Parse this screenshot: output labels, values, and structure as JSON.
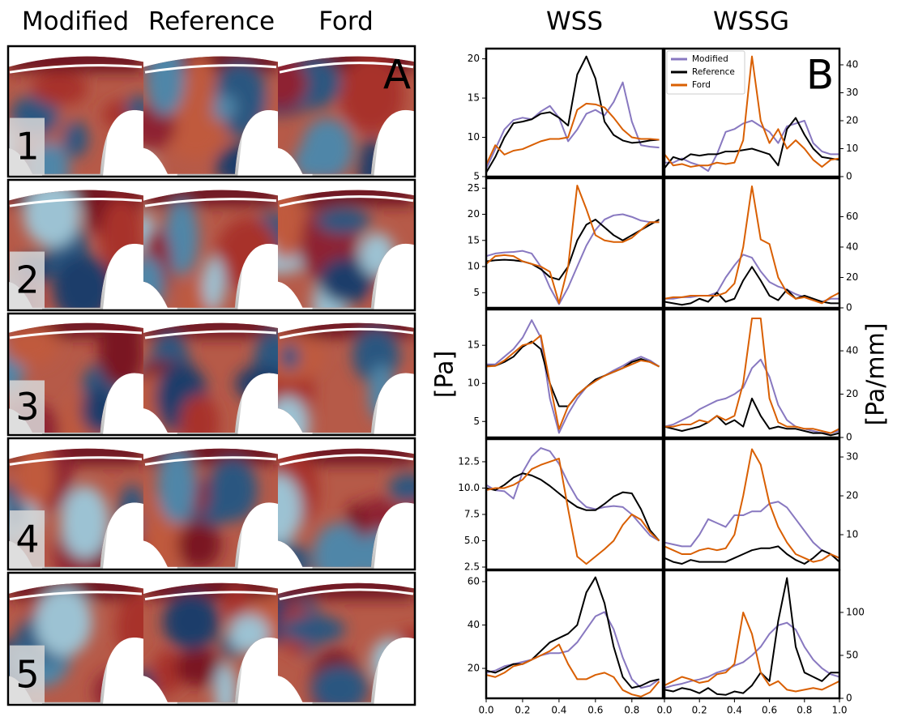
{
  "panel_a": {
    "label": "A",
    "columns": [
      "Modified",
      "Reference",
      "Ford"
    ],
    "rows": [
      "1",
      "2",
      "3",
      "4",
      "5"
    ]
  },
  "panel_b": {
    "label": "B",
    "columns": [
      "WSS",
      "WSSG"
    ],
    "y_labels": [
      "[Pa]",
      "[Pa/mm]"
    ]
  },
  "chart_data": [
    {
      "type": "line",
      "yaxis": "left",
      "xlim": [
        0,
        0.97
      ],
      "ylim": [
        5,
        21.3
      ],
      "yticks": [
        5,
        10,
        15,
        20
      ],
      "x": [
        0,
        0.05,
        0.1,
        0.15,
        0.2,
        0.25,
        0.3,
        0.35,
        0.4,
        0.45,
        0.5,
        0.55,
        0.6,
        0.65,
        0.7,
        0.75,
        0.8,
        0.85,
        0.9,
        0.95
      ],
      "series": [
        {
          "color": "#8878c0",
          "values": [
            6,
            8.5,
            11,
            12.2,
            12.5,
            12.3,
            13.3,
            14,
            12.5,
            9.5,
            11,
            13,
            13.5,
            12.8,
            14.5,
            17,
            12,
            9,
            8.8,
            8.7
          ]
        },
        {
          "color": "#000000",
          "values": [
            5.5,
            7.5,
            10,
            11.8,
            12,
            12.3,
            13,
            13.2,
            12.5,
            11.5,
            18,
            20.3,
            17.5,
            12,
            10.3,
            9.6,
            9.3,
            9.4,
            9.6,
            9.7
          ]
        },
        {
          "color": "#d95f02",
          "values": [
            6.5,
            9,
            7.8,
            8.3,
            8.5,
            9,
            9.5,
            9.8,
            9.8,
            10,
            13.5,
            14.3,
            14.2,
            13.8,
            12.5,
            11,
            10,
            9.8,
            9.8,
            9.7
          ]
        }
      ]
    },
    {
      "type": "line",
      "yaxis": "right",
      "xlim": [
        0,
        1
      ],
      "ylim": [
        0,
        45.8
      ],
      "yticks": [
        0,
        10,
        20,
        30,
        40
      ],
      "legend": "upper left",
      "x": [
        0,
        0.05,
        0.1,
        0.15,
        0.2,
        0.25,
        0.3,
        0.35,
        0.4,
        0.45,
        0.5,
        0.55,
        0.6,
        0.65,
        0.7,
        0.75,
        0.8,
        0.85,
        0.9,
        0.95,
        1
      ],
      "series": [
        {
          "name": "Modified",
          "color": "#8878c0",
          "values": [
            5,
            5,
            6.5,
            5,
            4,
            2,
            8,
            16,
            17,
            19,
            20,
            18,
            16,
            12,
            18,
            19,
            20,
            12,
            9,
            8,
            8
          ]
        },
        {
          "name": "Reference",
          "color": "#000000",
          "values": [
            3,
            7,
            6,
            8,
            7.5,
            8,
            8,
            9,
            9,
            9.5,
            10,
            9,
            8,
            4,
            17,
            21,
            15,
            10,
            7,
            6.5,
            6
          ]
        },
        {
          "name": "Ford",
          "color": "#d95f02",
          "values": [
            8,
            4,
            4.5,
            3.5,
            4,
            4,
            5,
            4.5,
            5,
            13,
            43,
            20,
            12,
            17,
            10,
            13,
            10,
            6,
            3.5,
            6,
            6.5
          ]
        }
      ]
    },
    {
      "type": "line",
      "yaxis": "left",
      "xlim": [
        0,
        0.97
      ],
      "ylim": [
        2.1,
        26.9
      ],
      "yticks": [
        5,
        10,
        15,
        20,
        25
      ],
      "x": [
        0,
        0.05,
        0.1,
        0.15,
        0.2,
        0.25,
        0.3,
        0.35,
        0.4,
        0.45,
        0.5,
        0.55,
        0.6,
        0.65,
        0.7,
        0.75,
        0.8,
        0.85,
        0.9,
        0.95
      ],
      "series": [
        {
          "color": "#8878c0",
          "values": [
            12,
            12.5,
            12.7,
            12.8,
            13,
            12.5,
            10,
            6,
            2.8,
            6,
            10,
            14,
            17,
            19,
            19.8,
            20,
            19.5,
            18.8,
            18.5,
            18.5
          ]
        },
        {
          "color": "#000000",
          "values": [
            11,
            11.2,
            11.3,
            11.2,
            11,
            10.5,
            9.5,
            8,
            7.5,
            10,
            15,
            18,
            19,
            17.5,
            16,
            15,
            16,
            17,
            18,
            19
          ]
        },
        {
          "color": "#d95f02",
          "values": [
            10.5,
            12,
            12.2,
            12,
            11,
            10.5,
            10,
            9,
            3,
            10,
            25.5,
            21,
            16,
            15,
            14.7,
            14.7,
            15.5,
            17,
            18.5,
            18.5
          ]
        }
      ]
    },
    {
      "type": "line",
      "yaxis": "right",
      "xlim": [
        0,
        1
      ],
      "ylim": [
        0,
        85.3
      ],
      "yticks": [
        0,
        20,
        40,
        60
      ],
      "x": [
        0,
        0.05,
        0.1,
        0.15,
        0.2,
        0.25,
        0.3,
        0.35,
        0.4,
        0.45,
        0.5,
        0.55,
        0.6,
        0.65,
        0.7,
        0.75,
        0.8,
        0.85,
        0.9,
        0.95,
        1
      ],
      "series": [
        {
          "color": "#8878c0",
          "values": [
            6,
            6,
            7,
            7,
            8,
            8,
            10,
            20,
            28,
            35,
            33,
            24,
            17,
            14,
            12,
            9,
            7,
            5,
            4,
            6,
            6
          ]
        },
        {
          "color": "#000000",
          "values": [
            4,
            3,
            2,
            3,
            6,
            4,
            10,
            4,
            6,
            18,
            27,
            18,
            8,
            5,
            12,
            6,
            8,
            6,
            4,
            3,
            3
          ]
        },
        {
          "color": "#d95f02",
          "values": [
            6,
            7,
            7,
            8,
            8,
            8,
            8,
            10,
            16,
            40,
            80,
            45,
            42,
            20,
            10,
            6,
            7,
            5,
            3,
            7,
            10
          ]
        }
      ]
    },
    {
      "type": "line",
      "yaxis": "left",
      "xlim": [
        0,
        0.97
      ],
      "ylim": [
        2.9,
        19.7
      ],
      "yticks": [
        5,
        10,
        15
      ],
      "x": [
        0,
        0.05,
        0.1,
        0.15,
        0.2,
        0.25,
        0.3,
        0.35,
        0.4,
        0.45,
        0.5,
        0.55,
        0.6,
        0.65,
        0.7,
        0.75,
        0.8,
        0.85,
        0.9,
        0.95
      ],
      "series": [
        {
          "color": "#8878c0",
          "values": [
            12.5,
            12.5,
            13.5,
            14.5,
            16,
            18.3,
            16,
            8,
            3.5,
            6,
            8,
            9.5,
            10.5,
            11,
            11.7,
            12.3,
            13,
            13.5,
            13,
            12.2
          ]
        },
        {
          "color": "#000000",
          "values": [
            12.3,
            12.3,
            12.8,
            13.5,
            14.8,
            15.5,
            14.5,
            10,
            7,
            7,
            8.5,
            9.5,
            10.5,
            11,
            11.5,
            12,
            12.8,
            13.2,
            12.8,
            12.2
          ]
        },
        {
          "color": "#d95f02",
          "values": [
            12.2,
            12.3,
            13,
            14,
            15,
            15.3,
            16.3,
            10,
            4,
            7,
            8.5,
            9.5,
            10.3,
            11,
            11.5,
            12,
            12.5,
            13,
            12.8,
            12.2
          ]
        }
      ]
    },
    {
      "type": "line",
      "yaxis": "right",
      "xlim": [
        0,
        1
      ],
      "ylim": [
        0,
        59.1
      ],
      "yticks": [
        0,
        20,
        40
      ],
      "x": [
        0,
        0.05,
        0.1,
        0.15,
        0.2,
        0.25,
        0.3,
        0.35,
        0.4,
        0.45,
        0.5,
        0.55,
        0.6,
        0.65,
        0.7,
        0.75,
        0.8,
        0.85,
        0.9,
        0.95,
        1
      ],
      "series": [
        {
          "color": "#8878c0",
          "values": [
            5,
            6,
            8,
            10,
            13,
            15,
            17,
            18,
            20,
            23,
            32,
            36,
            28,
            15,
            8,
            5,
            4,
            3,
            2,
            2,
            3
          ]
        },
        {
          "color": "#000000",
          "values": [
            5,
            4,
            3,
            4,
            5,
            7,
            10,
            6,
            8,
            5,
            18,
            10,
            4,
            5,
            4,
            4,
            3,
            2,
            2,
            1,
            2
          ]
        },
        {
          "color": "#d95f02",
          "values": [
            5,
            5,
            6,
            6,
            8,
            7,
            10,
            8,
            10,
            25,
            55,
            55,
            18,
            7,
            5,
            5,
            4,
            4,
            3,
            2,
            4
          ]
        }
      ]
    },
    {
      "type": "line",
      "yaxis": "left",
      "xlim": [
        0,
        0.97
      ],
      "ylim": [
        2.27,
        14.65
      ],
      "yticks": [
        2.5,
        {
          "value": 5,
          "label": "5.0"
        },
        7.5,
        {
          "value": 10,
          "label": "10.0"
        },
        12.5
      ],
      "x": [
        0,
        0.05,
        0.1,
        0.15,
        0.2,
        0.25,
        0.3,
        0.35,
        0.4,
        0.45,
        0.5,
        0.55,
        0.6,
        0.65,
        0.7,
        0.75,
        0.8,
        0.85,
        0.9,
        0.95
      ],
      "series": [
        {
          "color": "#8878c0",
          "values": [
            10.3,
            9.8,
            9.7,
            9,
            11.5,
            13,
            13.8,
            13.5,
            12.3,
            10.5,
            9,
            8.2,
            8,
            8.2,
            8.3,
            8.2,
            7.5,
            6.5,
            5.5,
            5
          ]
        },
        {
          "color": "#000000",
          "values": [
            10,
            9.8,
            10.3,
            11,
            11.4,
            11.2,
            10.8,
            10.2,
            9.5,
            8.8,
            8.2,
            7.9,
            7.9,
            8.5,
            9.2,
            9.6,
            9.5,
            8,
            6,
            5
          ]
        },
        {
          "color": "#d95f02",
          "values": [
            9.8,
            10,
            10,
            10.3,
            10.8,
            11.8,
            12.2,
            12.5,
            12.8,
            8,
            3.5,
            2.8,
            3.5,
            4.2,
            5,
            6.5,
            7.5,
            7,
            5.8,
            5
          ]
        }
      ]
    },
    {
      "type": "line",
      "yaxis": "right",
      "xlim": [
        0,
        1
      ],
      "ylim": [
        1.04,
        34.6
      ],
      "yticks": [
        10,
        20,
        30
      ],
      "x": [
        0,
        0.05,
        0.1,
        0.15,
        0.2,
        0.25,
        0.3,
        0.35,
        0.4,
        0.45,
        0.5,
        0.55,
        0.6,
        0.65,
        0.7,
        0.75,
        0.8,
        0.85,
        0.9,
        0.95,
        1
      ],
      "series": [
        {
          "color": "#8878c0",
          "values": [
            8,
            7.5,
            7,
            7,
            10,
            14,
            13,
            12,
            15,
            15,
            16,
            16,
            18,
            18.5,
            17,
            14,
            11,
            8,
            6,
            5,
            4
          ]
        },
        {
          "color": "#000000",
          "values": [
            4,
            3,
            2.5,
            3.5,
            3,
            3,
            3,
            3,
            4,
            5,
            6,
            6.5,
            6.5,
            7,
            5,
            3.5,
            2.5,
            4,
            6,
            5,
            3
          ]
        },
        {
          "color": "#d95f02",
          "values": [
            7,
            6,
            5,
            5,
            6,
            6.5,
            6,
            6.5,
            10,
            20,
            32,
            28,
            18,
            12,
            8,
            5,
            4,
            3,
            3.5,
            5,
            4
          ]
        }
      ]
    },
    {
      "type": "line",
      "yaxis": "left",
      "xlim": [
        0,
        0.97
      ],
      "ylim": [
        6.2,
        65.2
      ],
      "yticks": [
        20,
        40,
        60
      ],
      "xticks": [
        {
          "value": 0,
          "label": "0.0"
        },
        0.2,
        0.4,
        0.6,
        0.8
      ],
      "x": [
        0,
        0.05,
        0.1,
        0.15,
        0.2,
        0.25,
        0.3,
        0.35,
        0.4,
        0.45,
        0.5,
        0.55,
        0.6,
        0.65,
        0.7,
        0.75,
        0.8,
        0.85,
        0.9,
        0.95
      ],
      "series": [
        {
          "color": "#8878c0",
          "values": [
            18,
            19,
            21,
            22,
            23,
            24,
            26,
            27,
            27,
            28,
            32,
            38,
            44,
            46,
            38,
            25,
            15,
            11,
            12,
            15
          ]
        },
        {
          "color": "#000000",
          "values": [
            19,
            18,
            20,
            22,
            22,
            24,
            28,
            32,
            34,
            36,
            40,
            55,
            62,
            50,
            30,
            16,
            11,
            12,
            14,
            15
          ]
        },
        {
          "color": "#d95f02",
          "values": [
            17,
            16,
            18,
            21,
            22,
            24,
            26,
            28,
            31,
            22,
            15,
            15,
            17,
            18,
            16,
            10,
            8,
            7,
            9,
            14
          ]
        }
      ]
    },
    {
      "type": "line",
      "yaxis": "right",
      "xlim": [
        0,
        1
      ],
      "ylim": [
        0,
        149
      ],
      "yticks": [
        0,
        50,
        100
      ],
      "xticks": [
        {
          "value": 0,
          "label": "0.0"
        },
        0.2,
        0.4,
        0.6,
        0.8,
        {
          "value": 1,
          "label": "1.0"
        }
      ],
      "x": [
        0,
        0.05,
        0.1,
        0.15,
        0.2,
        0.25,
        0.3,
        0.35,
        0.4,
        0.45,
        0.5,
        0.55,
        0.6,
        0.65,
        0.7,
        0.75,
        0.8,
        0.85,
        0.9,
        0.95,
        1
      ],
      "series": [
        {
          "color": "#8878c0",
          "values": [
            12,
            15,
            17,
            20,
            22,
            25,
            30,
            33,
            38,
            42,
            50,
            60,
            75,
            85,
            88,
            80,
            60,
            45,
            35,
            28,
            25
          ]
        },
        {
          "color": "#000000",
          "values": [
            10,
            8,
            12,
            10,
            6,
            12,
            5,
            4,
            8,
            6,
            15,
            30,
            20,
            90,
            140,
            60,
            30,
            25,
            20,
            30,
            30
          ]
        },
        {
          "color": "#d95f02",
          "values": [
            15,
            20,
            25,
            22,
            18,
            20,
            28,
            30,
            40,
            100,
            75,
            30,
            15,
            20,
            10,
            8,
            10,
            12,
            10,
            15,
            20
          ]
        }
      ]
    }
  ]
}
